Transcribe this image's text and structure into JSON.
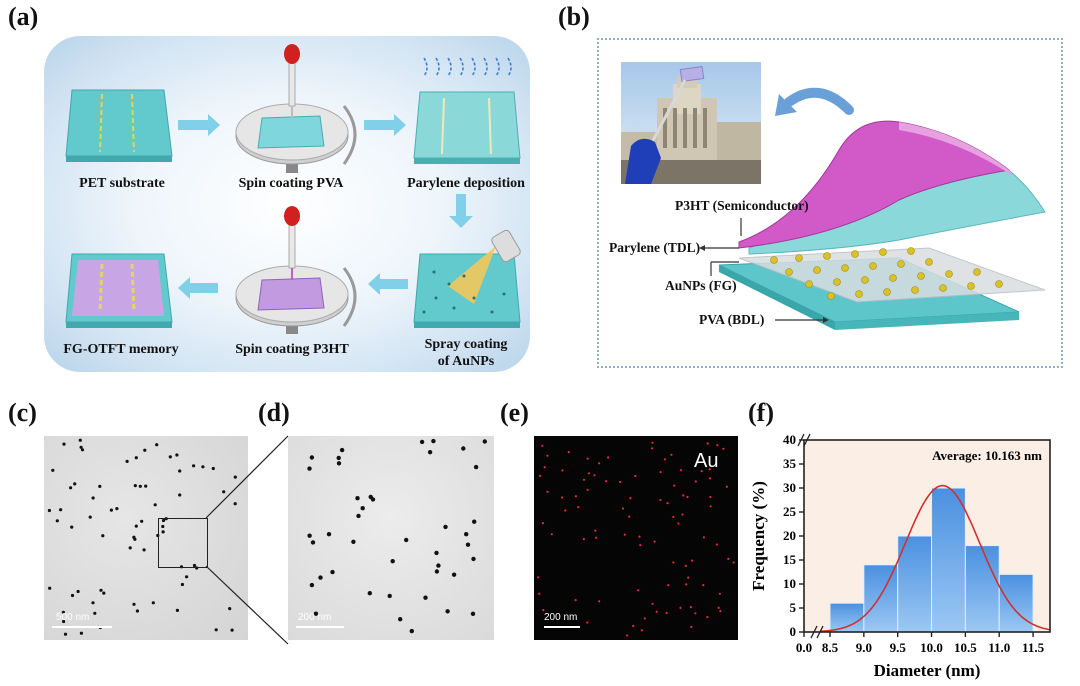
{
  "panel_labels": [
    "(a)",
    "(b)",
    "(c)",
    "(d)",
    "(e)",
    "(f)"
  ],
  "panel_a": {
    "steps": [
      "PET substrate",
      "Spin coating PVA",
      "Parylene deposition",
      "Spray coating\nof AuNPs",
      "Spin coating P3HT",
      "FG-OTFT memory"
    ]
  },
  "panel_b": {
    "layers": [
      "P3HT (Semiconductor)",
      "Parylene (TDL)",
      "AuNPs (FG)",
      "PVA (BDL)"
    ]
  },
  "panel_c": {
    "scalebar": "500 nm"
  },
  "panel_d": {
    "scalebar": "200 nm"
  },
  "panel_e": {
    "scalebar": "200 nm",
    "element": "Au"
  },
  "colors": {
    "teal": "#58c6c9",
    "purple": "#b27fd6",
    "magenta": "#d653c9",
    "gold": "#d9c21f",
    "bar": "#5a9fe0",
    "curve": "#d03030",
    "bg_f": "#fbeee4"
  },
  "chart_data": {
    "type": "bar",
    "title": "",
    "annotation": "Average: 10.163 nm",
    "xlabel": "Diameter (nm)",
    "ylabel": "Frequency (%)",
    "xlim": [
      0.0,
      11.75
    ],
    "ylim": [
      0,
      40
    ],
    "axis_break": "between 0.0 and 8.5 on x; at 40 on y",
    "x_ticks": [
      "0.0",
      "8.5",
      "9.0",
      "9.5",
      "10.0",
      "10.5",
      "11.0",
      "11.5"
    ],
    "y_ticks": [
      "0",
      "5",
      "10",
      "15",
      "20",
      "25",
      "30",
      "35",
      "40"
    ],
    "bins": [
      {
        "from": 8.5,
        "to": 9.0,
        "value": 6
      },
      {
        "from": 9.0,
        "to": 9.5,
        "value": 14
      },
      {
        "from": 9.5,
        "to": 10.0,
        "value": 20
      },
      {
        "from": 10.0,
        "to": 10.5,
        "value": 30
      },
      {
        "from": 10.5,
        "to": 11.0,
        "value": 18
      },
      {
        "from": 11.0,
        "to": 11.5,
        "value": 12
      }
    ],
    "fit": {
      "type": "gaussian",
      "mean": 10.163,
      "peak": 30.5,
      "sigma": 0.55
    },
    "grid": false
  }
}
